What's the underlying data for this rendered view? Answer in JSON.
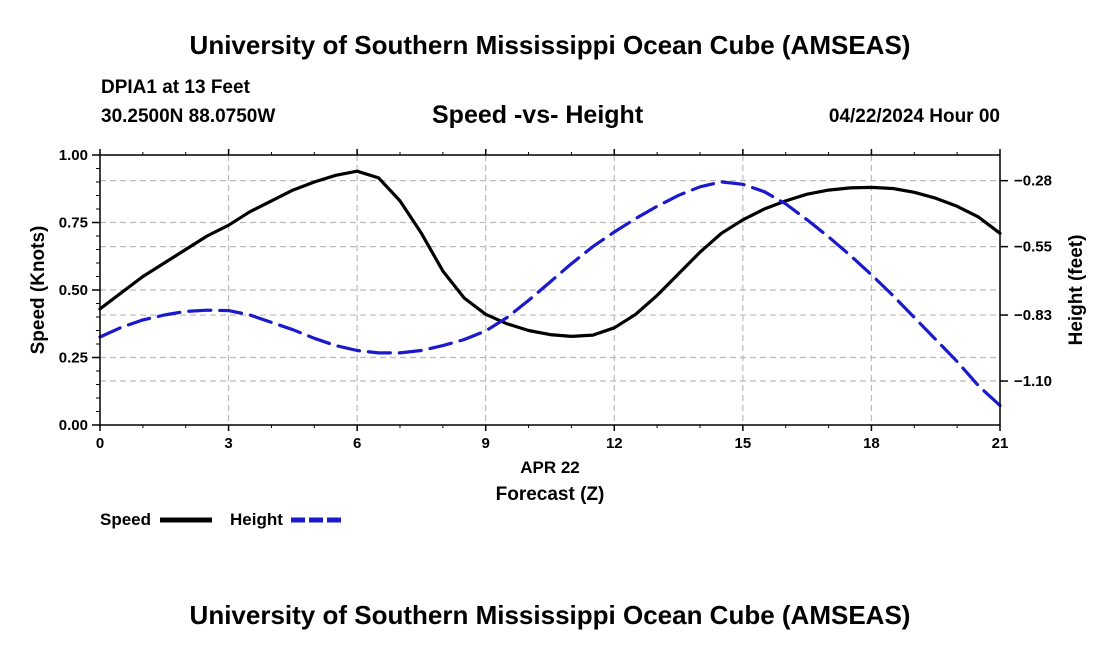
{
  "header": {
    "title": "University of Southern Mississippi Ocean Cube (AMSEAS)",
    "station": "DPIA1 at 13 Feet",
    "coords": "30.2500N  88.0750W",
    "datetime": "04/22/2024 Hour 00"
  },
  "footer": {
    "title": "University of Southern Mississippi Ocean Cube (AMSEAS)"
  },
  "colors": {
    "speed": "#000000",
    "height": "#1a1acc",
    "grid": "#bbbbbb"
  },
  "chart_data": {
    "type": "line",
    "title": "Speed -vs- Height",
    "xlabel": "Forecast (Z)",
    "xlabel_date": "APR 22",
    "ylabel": "Speed (Knots)",
    "y2label": "Height (feet)",
    "xlim": [
      0,
      21
    ],
    "ylim": [
      0,
      1
    ],
    "y2lim": [
      -1.28,
      -0.175
    ],
    "x_ticks": [
      0,
      3,
      6,
      9,
      12,
      15,
      18,
      21
    ],
    "x_tick_labels": [
      "0",
      "3",
      "6",
      "9",
      "12",
      "15",
      "18",
      "21"
    ],
    "y_ticks": [
      0,
      0.25,
      0.5,
      0.75,
      1.0
    ],
    "y_tick_labels": [
      "0.00",
      "0.25",
      "0.50",
      "0.75",
      "1.00"
    ],
    "y2_ticks": [
      -1.1,
      -0.83,
      -0.55,
      -0.28
    ],
    "y2_tick_labels": [
      "−1.10",
      "−0.83",
      "−0.55",
      "−0.28"
    ],
    "grid": true,
    "legend": [
      "Speed",
      "Height"
    ],
    "series": [
      {
        "name": "Speed",
        "axis": "left",
        "style": "solid",
        "x": [
          0,
          0.5,
          1,
          1.5,
          2,
          2.5,
          3,
          3.5,
          4,
          4.5,
          5,
          5.5,
          6,
          6.5,
          7,
          7.5,
          8,
          8.5,
          9,
          9.5,
          10,
          10.5,
          11,
          11.5,
          12,
          12.5,
          13,
          13.5,
          14,
          14.5,
          15,
          15.5,
          16,
          16.5,
          17,
          17.5,
          18,
          18.5,
          19,
          19.5,
          20,
          20.5,
          21
        ],
        "y": [
          0.43,
          0.49,
          0.55,
          0.6,
          0.65,
          0.7,
          0.74,
          0.79,
          0.83,
          0.87,
          0.9,
          0.925,
          0.94,
          0.915,
          0.83,
          0.71,
          0.57,
          0.47,
          0.41,
          0.375,
          0.35,
          0.335,
          0.328,
          0.333,
          0.36,
          0.41,
          0.48,
          0.56,
          0.64,
          0.71,
          0.76,
          0.8,
          0.83,
          0.855,
          0.87,
          0.878,
          0.88,
          0.876,
          0.862,
          0.84,
          0.81,
          0.77,
          0.71
        ]
      },
      {
        "name": "Height",
        "axis": "right",
        "style": "dashed",
        "x": [
          0,
          0.5,
          1,
          1.5,
          2,
          2.5,
          3,
          3.5,
          4,
          4.5,
          5,
          5.5,
          6,
          6.5,
          7,
          7.5,
          8,
          8.5,
          9,
          9.5,
          10,
          10.5,
          11,
          11.5,
          12,
          12.5,
          13,
          13.5,
          14,
          14.5,
          15,
          15.5,
          16,
          16.5,
          17,
          17.5,
          18,
          18.5,
          19,
          19.5,
          20,
          20.5,
          21
        ],
        "y": [
          -0.92,
          -0.88,
          -0.85,
          -0.83,
          -0.815,
          -0.81,
          -0.812,
          -0.83,
          -0.86,
          -0.89,
          -0.925,
          -0.955,
          -0.975,
          -0.985,
          -0.985,
          -0.975,
          -0.955,
          -0.93,
          -0.895,
          -0.84,
          -0.77,
          -0.695,
          -0.62,
          -0.55,
          -0.49,
          -0.435,
          -0.385,
          -0.34,
          -0.305,
          -0.285,
          -0.295,
          -0.325,
          -0.375,
          -0.44,
          -0.51,
          -0.585,
          -0.665,
          -0.75,
          -0.84,
          -0.93,
          -1.02,
          -1.12,
          -1.2
        ]
      }
    ]
  }
}
